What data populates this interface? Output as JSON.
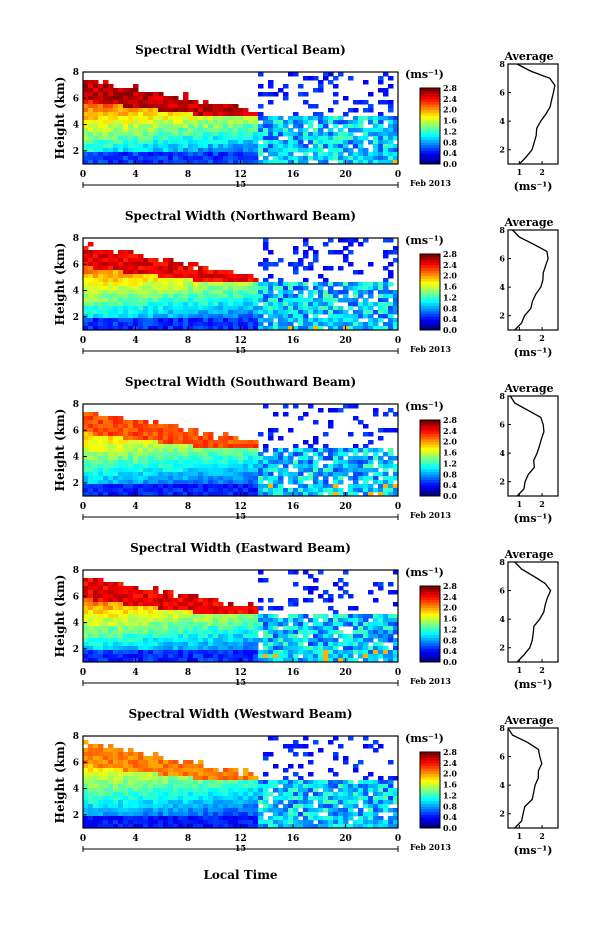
{
  "figure": {
    "x_axis_label": "Local Time",
    "date_label": "Feb 2013",
    "day_label": "15",
    "colorbar_unit": "(ms⁻¹)",
    "avg_unit": "(ms⁻¹)",
    "avg_title": "Average",
    "y_axis_label": "Height (km)"
  },
  "chart_data": [
    {
      "type": "heatmap",
      "title": "Spectral Width (Vertical Beam)",
      "xlabel": "",
      "ylabel": "Height (km)",
      "xlim": [
        0,
        24
      ],
      "ylim": [
        1,
        8
      ],
      "x_ticks": [
        "0",
        "4",
        "8",
        "12",
        "16",
        "20",
        "0"
      ],
      "y_ticks": [
        "2",
        "4",
        "6",
        "8"
      ],
      "colorbar": {
        "range": [
          0.0,
          2.8
        ],
        "ticks": [
          "0.0",
          "0.4",
          "0.8",
          "1.2",
          "1.6",
          "2.0",
          "2.4",
          "2.8"
        ]
      },
      "average_profile": {
        "title": "Average",
        "xlabel": "(ms⁻¹)",
        "x_ticks": [
          "1",
          "2"
        ],
        "height": [
          1.0,
          1.5,
          2.0,
          2.5,
          3.0,
          3.5,
          4.0,
          4.5,
          5.0,
          5.5,
          6.0,
          6.5,
          7.0,
          7.5,
          8.0
        ],
        "width": [
          1.0,
          1.3,
          1.5,
          1.6,
          1.7,
          1.8,
          2.0,
          2.1,
          2.3,
          2.4,
          2.5,
          2.6,
          2.3,
          1.5,
          0.9
        ]
      }
    },
    {
      "type": "heatmap",
      "title": "Spectral Width (Northward Beam)",
      "xlabel": "",
      "ylabel": "Height (km)",
      "xlim": [
        0,
        24
      ],
      "ylim": [
        1,
        8
      ],
      "x_ticks": [
        "0",
        "4",
        "8",
        "12",
        "16",
        "20",
        "0"
      ],
      "y_ticks": [
        "2",
        "4",
        "6",
        "8"
      ],
      "colorbar": {
        "range": [
          0.0,
          2.8
        ],
        "ticks": [
          "0.0",
          "0.4",
          "0.8",
          "1.2",
          "1.6",
          "2.0",
          "2.4",
          "2.8"
        ]
      },
      "average_profile": {
        "title": "Average",
        "xlabel": "(ms⁻¹)",
        "x_ticks": [
          "1",
          "2"
        ],
        "height": [
          1.0,
          1.5,
          2.0,
          2.5,
          3.0,
          3.5,
          4.0,
          4.5,
          5.0,
          5.5,
          6.0,
          6.5,
          7.0,
          7.5,
          8.0
        ],
        "width": [
          0.8,
          1.1,
          1.3,
          1.5,
          1.6,
          1.7,
          1.9,
          2.0,
          2.1,
          2.2,
          2.3,
          2.2,
          1.7,
          1.0,
          0.7
        ]
      }
    },
    {
      "type": "heatmap",
      "title": "Spectral Width (Southward Beam)",
      "xlabel": "",
      "ylabel": "Height (km)",
      "xlim": [
        0,
        24
      ],
      "ylim": [
        1,
        8
      ],
      "x_ticks": [
        "0",
        "4",
        "8",
        "12",
        "16",
        "20",
        "0"
      ],
      "y_ticks": [
        "2",
        "4",
        "6",
        "8"
      ],
      "colorbar": {
        "range": [
          0.0,
          2.8
        ],
        "ticks": [
          "0.0",
          "0.4",
          "0.8",
          "1.2",
          "1.6",
          "2.0",
          "2.4",
          "2.8"
        ]
      },
      "average_profile": {
        "title": "Average",
        "xlabel": "(ms⁻¹)",
        "x_ticks": [
          "1",
          "2"
        ],
        "height": [
          1.0,
          1.5,
          2.0,
          2.5,
          3.0,
          3.5,
          4.0,
          4.5,
          5.0,
          5.5,
          6.0,
          6.5,
          7.0,
          7.5,
          8.0
        ],
        "width": [
          0.9,
          1.2,
          1.3,
          1.4,
          1.6,
          1.7,
          1.8,
          1.9,
          2.0,
          2.1,
          2.0,
          1.9,
          1.4,
          0.8,
          0.6
        ]
      }
    },
    {
      "type": "heatmap",
      "title": "Spectral Width (Eastward Beam)",
      "xlabel": "",
      "ylabel": "Height (km)",
      "xlim": [
        0,
        24
      ],
      "ylim": [
        1,
        8
      ],
      "x_ticks": [
        "0",
        "4",
        "8",
        "12",
        "16",
        "20",
        "0"
      ],
      "y_ticks": [
        "2",
        "4",
        "6",
        "8"
      ],
      "colorbar": {
        "range": [
          0.0,
          2.8
        ],
        "ticks": [
          "0.0",
          "0.4",
          "0.8",
          "1.2",
          "1.6",
          "2.0",
          "2.4",
          "2.8"
        ]
      },
      "average_profile": {
        "title": "Average",
        "xlabel": "(ms⁻¹)",
        "x_ticks": [
          "1",
          "2"
        ],
        "height": [
          1.0,
          1.5,
          2.0,
          2.5,
          3.0,
          3.5,
          4.0,
          4.5,
          5.0,
          5.5,
          6.0,
          6.5,
          7.0,
          7.5,
          8.0
        ],
        "width": [
          0.9,
          1.2,
          1.4,
          1.5,
          1.6,
          1.7,
          1.9,
          2.0,
          2.1,
          2.2,
          2.3,
          2.2,
          1.7,
          1.1,
          0.8
        ]
      }
    },
    {
      "type": "heatmap",
      "title": "Spectral Width (Westward Beam)",
      "xlabel": "Local Time",
      "ylabel": "Height (km)",
      "xlim": [
        0,
        24
      ],
      "ylim": [
        1,
        8
      ],
      "x_ticks": [
        "0",
        "4",
        "8",
        "12",
        "16",
        "20",
        "0"
      ],
      "y_ticks": [
        "2",
        "4",
        "6",
        "8"
      ],
      "colorbar": {
        "range": [
          0.0,
          2.8
        ],
        "ticks": [
          "0.0",
          "0.4",
          "0.8",
          "1.2",
          "1.6",
          "2.0",
          "2.4",
          "2.8"
        ]
      },
      "average_profile": {
        "title": "Average",
        "xlabel": "(ms⁻¹)",
        "x_ticks": [
          "1",
          "2"
        ],
        "height": [
          1.0,
          1.5,
          2.0,
          2.5,
          3.0,
          3.5,
          4.0,
          4.5,
          5.0,
          5.5,
          6.0,
          6.5,
          7.0,
          7.5,
          8.0
        ],
        "width": [
          0.8,
          1.1,
          1.2,
          1.3,
          1.5,
          1.6,
          1.7,
          1.8,
          1.9,
          2.0,
          1.9,
          1.8,
          1.3,
          0.7,
          0.5
        ]
      }
    }
  ]
}
